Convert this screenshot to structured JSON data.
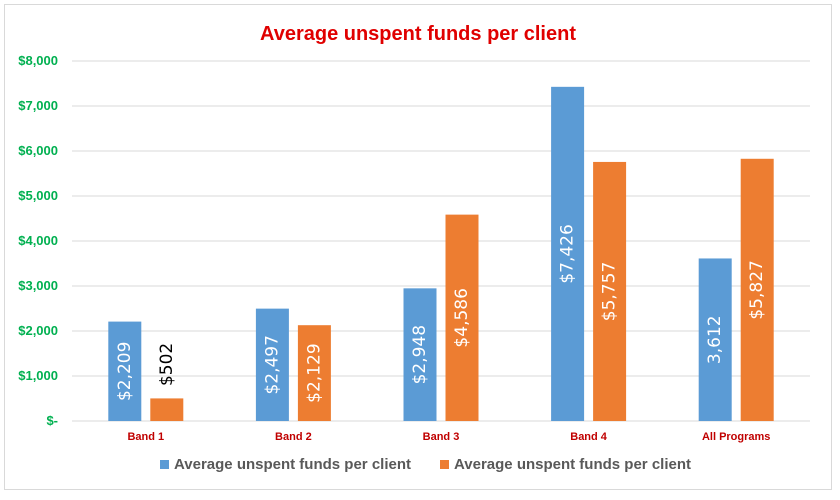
{
  "chart_data": {
    "type": "bar",
    "title": "Average unspent funds per client",
    "categories": [
      "Band 1",
      "Band 2",
      "Band 3",
      "Band 4",
      "All Programs"
    ],
    "series": [
      {
        "name": "Average unspent funds per client",
        "color": "#5b9bd5",
        "values": [
          2209,
          2497,
          2948,
          7426,
          3612
        ],
        "labels": [
          "$2,209",
          "$2,497",
          "$2,948",
          "$7,426",
          "3,612"
        ]
      },
      {
        "name": "Average unspent funds per client",
        "color": "#ed7d31",
        "values": [
          502,
          2129,
          4586,
          5757,
          5827
        ],
        "labels": [
          "$502",
          "$2,129",
          "$4,586",
          "$5,757",
          "$5,827"
        ]
      }
    ],
    "ylim": [
      0,
      8000
    ],
    "y_ticks": [
      0,
      1000,
      2000,
      3000,
      4000,
      5000,
      6000,
      7000,
      8000
    ],
    "y_tick_labels": [
      "$-",
      "$1,000",
      "$2,000",
      "$3,000",
      "$4,000",
      "$5,000",
      "$6,000",
      "$7,000",
      "$8,000"
    ],
    "grid": true,
    "legend_position": "bottom",
    "colors": {
      "title": "#e00000",
      "y_ticks": "#00b050",
      "x_ticks": "#c00000",
      "gridline": "#d9d9d9",
      "label_inside": "#ffffff",
      "label_outside": "#000000",
      "legend_text": "#595959"
    }
  }
}
